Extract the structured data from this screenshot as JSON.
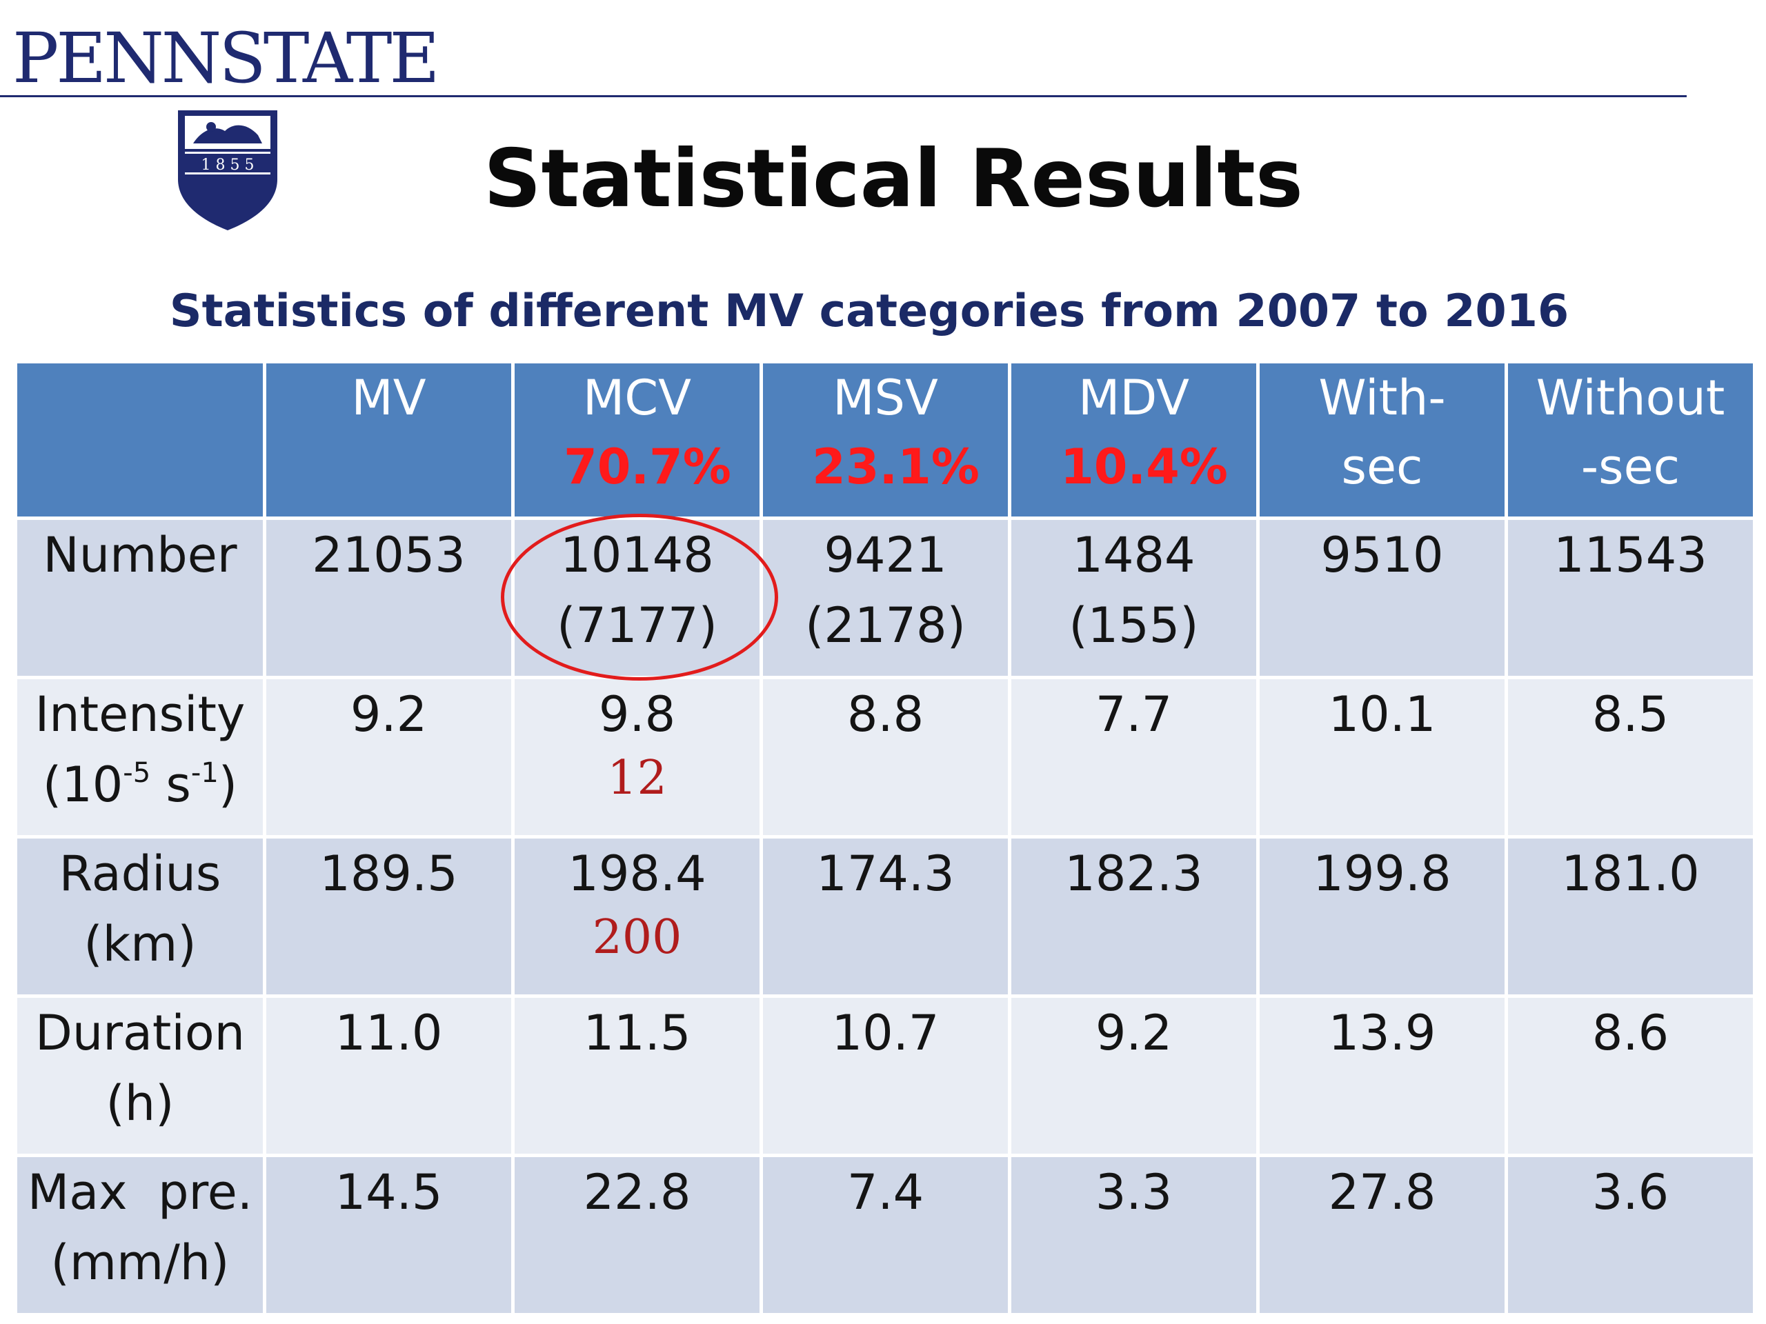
{
  "header": {
    "logo_text": "PENNSTATE",
    "shield_year": "1 8 5 5"
  },
  "title": "Statistical Results",
  "table": {
    "caption": "Statistics of  different MV categories from 2007 to 2016",
    "columns": [
      {
        "name": "MV",
        "line2": "",
        "percent": ""
      },
      {
        "name": "MCV",
        "line2": "",
        "percent": "70.7%"
      },
      {
        "name": "MSV",
        "line2": "",
        "percent": "23.1%"
      },
      {
        "name": "MDV",
        "line2": "",
        "percent": "10.4%"
      },
      {
        "name": "With-",
        "line2": "sec",
        "percent": ""
      },
      {
        "name": "Without",
        "line2": "-sec",
        "percent": ""
      }
    ],
    "rows": [
      {
        "label_line1": "Number",
        "label_line2": "",
        "label_sup1": "",
        "label_mid": "",
        "label_sup2": "",
        "label_end": "",
        "cells": [
          {
            "value": "21053",
            "sub": "",
            "annotation": ""
          },
          {
            "value": "10148",
            "sub": "(7177)",
            "annotation": ""
          },
          {
            "value": "9421",
            "sub": "(2178)",
            "annotation": ""
          },
          {
            "value": "1484",
            "sub": "(155)",
            "annotation": ""
          },
          {
            "value": "9510",
            "sub": "",
            "annotation": ""
          },
          {
            "value": "11543",
            "sub": "",
            "annotation": ""
          }
        ]
      },
      {
        "label_line1": "Intensity",
        "label_line2": "(10",
        "label_sup1": "-5",
        "label_mid": " s",
        "label_sup2": "-1",
        "label_end": ")",
        "cells": [
          {
            "value": "9.2",
            "sub": "",
            "annotation": ""
          },
          {
            "value": "9.8",
            "sub": "",
            "annotation": "12"
          },
          {
            "value": "8.8",
            "sub": "",
            "annotation": ""
          },
          {
            "value": "7.7",
            "sub": "",
            "annotation": ""
          },
          {
            "value": "10.1",
            "sub": "",
            "annotation": ""
          },
          {
            "value": "8.5",
            "sub": "",
            "annotation": ""
          }
        ]
      },
      {
        "label_line1": "Radius",
        "label_line2": "(km)",
        "label_sup1": "",
        "label_mid": "",
        "label_sup2": "",
        "label_end": "",
        "cells": [
          {
            "value": "189.5",
            "sub": "",
            "annotation": ""
          },
          {
            "value": "198.4",
            "sub": "",
            "annotation": "200"
          },
          {
            "value": "174.3",
            "sub": "",
            "annotation": ""
          },
          {
            "value": "182.3",
            "sub": "",
            "annotation": ""
          },
          {
            "value": "199.8",
            "sub": "",
            "annotation": ""
          },
          {
            "value": "181.0",
            "sub": "",
            "annotation": ""
          }
        ]
      },
      {
        "label_line1": "Duration",
        "label_line2": "(h)",
        "label_sup1": "",
        "label_mid": "",
        "label_sup2": "",
        "label_end": "",
        "cells": [
          {
            "value": "11.0",
            "sub": "",
            "annotation": ""
          },
          {
            "value": "11.5",
            "sub": "",
            "annotation": ""
          },
          {
            "value": "10.7",
            "sub": "",
            "annotation": ""
          },
          {
            "value": "9.2",
            "sub": "",
            "annotation": ""
          },
          {
            "value": "13.9",
            "sub": "",
            "annotation": ""
          },
          {
            "value": "8.6",
            "sub": "",
            "annotation": ""
          }
        ]
      },
      {
        "label_line1": "Max  pre.",
        "label_line2": "(mm/h)",
        "label_sup1": "",
        "label_mid": "",
        "label_sup2": "",
        "label_end": "",
        "cells": [
          {
            "value": "14.5",
            "sub": "",
            "annotation": ""
          },
          {
            "value": "22.8",
            "sub": "",
            "annotation": ""
          },
          {
            "value": "7.4",
            "sub": "",
            "annotation": ""
          },
          {
            "value": "3.3",
            "sub": "",
            "annotation": ""
          },
          {
            "value": "27.8",
            "sub": "",
            "annotation": ""
          },
          {
            "value": "3.6",
            "sub": "",
            "annotation": ""
          }
        ]
      }
    ]
  },
  "colors": {
    "header_fill": "#4f81bd",
    "row_band_dark": "#d0d8e8",
    "row_band_light": "#e9edf4",
    "percent_text": "#ff1a1a",
    "annotation_text": "#b01c1c",
    "highlight_ellipse": "#e21c1c",
    "logo_navy": "#1f2a70",
    "caption_navy": "#1b2a66"
  },
  "icons": {
    "logo_shield": "penn-state-shield-icon"
  }
}
